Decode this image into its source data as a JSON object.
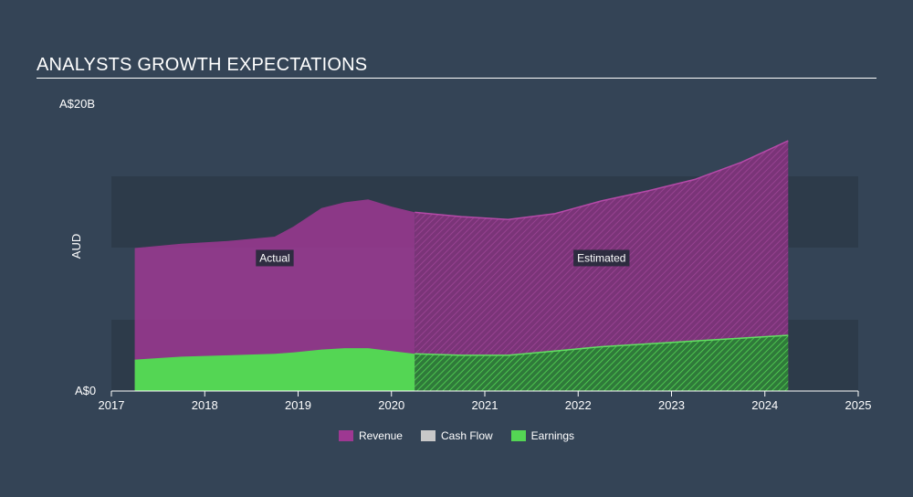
{
  "header": {
    "title": "ANALYSTS GROWTH EXPECTATIONS"
  },
  "colors": {
    "background": "#344456",
    "band": "#2d3b4a",
    "revenue": "#9e3892",
    "cash_flow": "#c8c8c8",
    "earnings": "#54d654"
  },
  "chart_data": {
    "type": "area",
    "title": "ANALYSTS GROWTH EXPECTATIONS",
    "xlabel": "",
    "ylabel": "AUD",
    "y_tick_labels": [
      "A$0",
      "A$20B"
    ],
    "ylim": [
      0,
      20
    ],
    "xlim": [
      2017,
      2025
    ],
    "x_ticks": [
      2017,
      2018,
      2019,
      2020,
      2021,
      2022,
      2023,
      2024,
      2025
    ],
    "actual_until": 2020.25,
    "annotations": [
      {
        "text": "Actual",
        "x": 2018.75,
        "y": 9.3
      },
      {
        "text": "Estimated",
        "x": 2022.25,
        "y": 9.3
      }
    ],
    "legend": {
      "position": "bottom-center",
      "entries": [
        "Revenue",
        "Cash Flow",
        "Earnings"
      ]
    },
    "series": [
      {
        "name": "Revenue",
        "x": [
          2017.25,
          2017.75,
          2018.25,
          2018.75,
          2018.95,
          2019.25,
          2019.5,
          2019.75,
          2020.0,
          2020.25,
          2020.75,
          2021.25,
          2021.75,
          2022.25,
          2022.75,
          2023.25,
          2023.75,
          2024.25
        ],
        "values": [
          10.0,
          10.3,
          10.5,
          10.8,
          11.5,
          12.8,
          13.2,
          13.4,
          12.9,
          12.5,
          12.2,
          12.0,
          12.4,
          13.3,
          14.0,
          14.8,
          16.0,
          17.5
        ]
      },
      {
        "name": "Earnings",
        "x": [
          2017.25,
          2017.75,
          2018.25,
          2018.75,
          2018.95,
          2019.25,
          2019.5,
          2019.75,
          2020.0,
          2020.25,
          2020.75,
          2021.25,
          2021.75,
          2022.25,
          2022.75,
          2023.25,
          2023.75,
          2024.25
        ],
        "values": [
          2.2,
          2.4,
          2.5,
          2.6,
          2.7,
          2.9,
          3.0,
          3.0,
          2.8,
          2.6,
          2.5,
          2.5,
          2.8,
          3.1,
          3.3,
          3.5,
          3.7,
          3.9
        ]
      }
    ]
  }
}
